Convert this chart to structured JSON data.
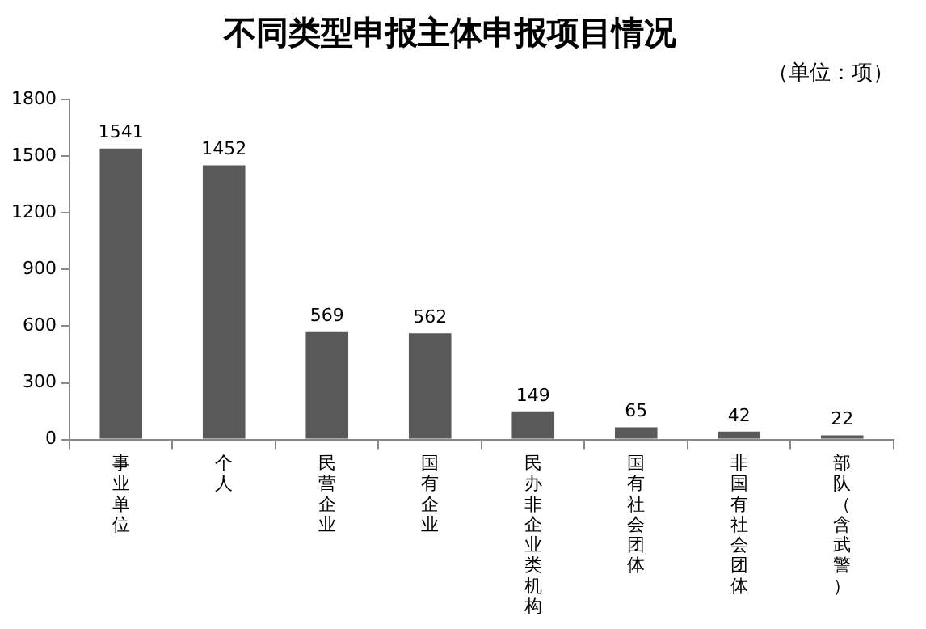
{
  "chart_data": {
    "type": "bar",
    "title": "不同类型申报主体申报项目情况",
    "subtitle": "（单位：项）",
    "categories": [
      "事业单位",
      "个人",
      "民营企业",
      "国有企业",
      "民办非企业类机构",
      "国有社会团体",
      "非国有社会团体",
      "部队（含武警）"
    ],
    "values": [
      1541,
      1452,
      569,
      562,
      149,
      65,
      42,
      22
    ],
    "color": "#595959",
    "ylim": [
      0,
      1800
    ],
    "yticks": [
      0,
      300,
      600,
      900,
      1200,
      1500,
      1800
    ],
    "data_labels": true
  }
}
